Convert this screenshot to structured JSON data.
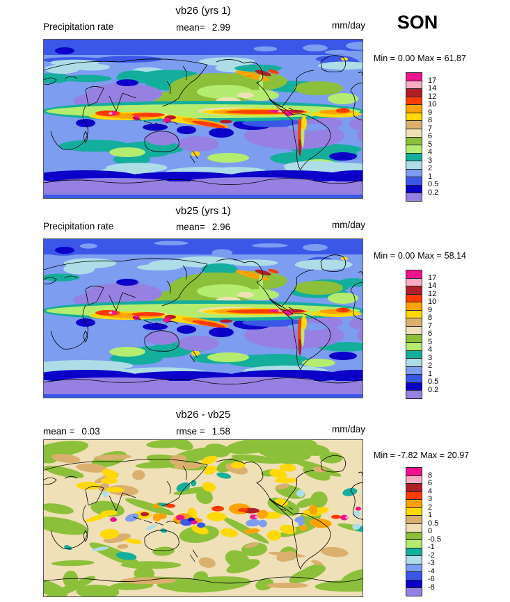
{
  "season": "SON",
  "palette": [
    "#F0138E",
    "#FBADC5",
    "#B01E28",
    "#FF3C00",
    "#FFA305",
    "#FFD905",
    "#DBB06E",
    "#EFE0B8",
    "#8CC03A",
    "#B4EC70",
    "#14AE9C",
    "#AEDDE8",
    "#7D9DF0",
    "#3A57E8",
    "#0A00C8",
    "#9681E2"
  ],
  "panels": [
    {
      "title": "vb26 (yrs 1)",
      "left_label": "Precipitation rate",
      "stats": [
        {
          "label": "mean=",
          "value": "2.99"
        }
      ],
      "units": "mm/day",
      "range": {
        "min_label": "Min =",
        "min": "0.00",
        "max_label": "Max =",
        "max": "61.87"
      },
      "colorbar_labels": [
        "17",
        "14",
        "12",
        "10",
        "9",
        "8",
        "7",
        "6",
        "5",
        "4",
        "3",
        "2",
        "1",
        "0.5",
        "0.2"
      ]
    },
    {
      "title": "vb25 (yrs 1)",
      "left_label": "Precipitation rate",
      "stats": [
        {
          "label": "mean=",
          "value": "2.96"
        }
      ],
      "units": "mm/day",
      "range": {
        "min_label": "Min =",
        "min": "0.00",
        "max_label": "Max =",
        "max": "58.14"
      },
      "colorbar_labels": [
        "17",
        "14",
        "12",
        "10",
        "9",
        "8",
        "7",
        "6",
        "5",
        "4",
        "3",
        "2",
        "1",
        "0.5",
        "0.2"
      ]
    },
    {
      "title": "vb26 - vb25",
      "stats": [
        {
          "label": "mean =",
          "value": "0.03"
        },
        {
          "label": "rmse =",
          "value": "1.58"
        }
      ],
      "units": "mm/day",
      "range": {
        "min_label": "Min =",
        "min": "-7.82",
        "max_label": "Max =",
        "max": "20.97"
      },
      "colorbar_labels": [
        "8",
        "6",
        "4",
        "3",
        "2",
        "1",
        "0.5",
        "0",
        "-0.5",
        "-1",
        "-2",
        "-3",
        "-4",
        "-6",
        "-8"
      ]
    }
  ],
  "chart_data": [
    {
      "type": "heatmap",
      "subtype": "global filled-contour map, cylindrical equidistant, 0E at left edge",
      "title": "vb26 (yrs 1)",
      "variable": "Precipitation rate",
      "season": "SON",
      "units": "mm/day",
      "mean": 2.99,
      "min": 0.0,
      "max": 61.87,
      "contour_levels": [
        0.2,
        0.5,
        1,
        2,
        3,
        4,
        5,
        6,
        7,
        8,
        9,
        10,
        12,
        14,
        17
      ],
      "palette_low_to_high": [
        "#9681E2",
        "#0A00C8",
        "#3A57E8",
        "#7D9DF0",
        "#AEDDE8",
        "#14AE9C",
        "#B4EC70",
        "#8CC03A",
        "#EFE0B8",
        "#DBB06E",
        "#FFD905",
        "#FFA305",
        "#FF3C00",
        "#B01E28",
        "#FBADC5",
        "#F0138E"
      ],
      "legend_position": "right",
      "notable_features": "ITCZ band of 12-17+ mm/day across tropical Pacific and Indian Ocean with >17 spots over Indonesia, New Guinea and Colombia; dry (<0.2) purple zones over Sahara/Arabia, SE Pacific, S Atlantic; polar regions <0.5"
    },
    {
      "type": "heatmap",
      "subtype": "global filled-contour map, cylindrical equidistant, 0E at left edge",
      "title": "vb25 (yrs 1)",
      "variable": "Precipitation rate",
      "season": "SON",
      "units": "mm/day",
      "mean": 2.96,
      "min": 0.0,
      "max": 58.14,
      "contour_levels": [
        0.2,
        0.5,
        1,
        2,
        3,
        4,
        5,
        6,
        7,
        8,
        9,
        10,
        12,
        14,
        17
      ],
      "palette_low_to_high": [
        "#9681E2",
        "#0A00C8",
        "#3A57E8",
        "#7D9DF0",
        "#AEDDE8",
        "#14AE9C",
        "#B4EC70",
        "#8CC03A",
        "#EFE0B8",
        "#DBB06E",
        "#FFD905",
        "#FFA305",
        "#FF3C00",
        "#B01E28",
        "#FBADC5",
        "#F0138E"
      ],
      "legend_position": "right",
      "notable_features": "Pattern nearly identical to vb26: strong ITCZ/SPCZ bands, dry subtropical purple zones, wet maritime continent"
    },
    {
      "type": "heatmap",
      "subtype": "global filled-contour difference map, cylindrical equidistant, 0E at left edge",
      "title": "vb26 - vb25",
      "variable": "Precipitation rate difference",
      "season": "SON",
      "units": "mm/day",
      "mean": 0.03,
      "rmse": 1.58,
      "min": -7.82,
      "max": 20.97,
      "contour_levels": [
        -8,
        -6,
        -4,
        -3,
        -2,
        -1,
        -0.5,
        0,
        0.5,
        1,
        2,
        3,
        4,
        6,
        8
      ],
      "palette_low_to_high": [
        "#9681E2",
        "#0A00C8",
        "#3A57E8",
        "#7D9DF0",
        "#AEDDE8",
        "#14AE9C",
        "#B4EC70",
        "#8CC03A",
        "#EFE0B8",
        "#DBB06E",
        "#FFD905",
        "#FFA305",
        "#FF3C00",
        "#B01E28",
        "#FBADC5",
        "#F0138E"
      ],
      "legend_position": "right",
      "notable_features": "Mostly small differences (beige 0 to 0.5, green -0.5 to 0) with scattered +/- blobs of 1-8 mm/day along the tropics and storm tracks"
    }
  ]
}
